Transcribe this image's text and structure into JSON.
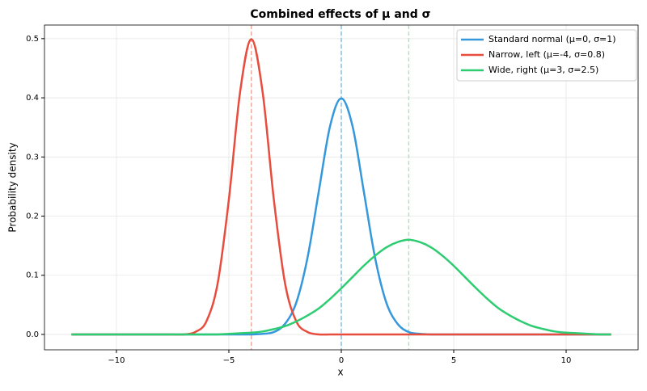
{
  "chart_data": {
    "type": "line",
    "title": "Combined effects of μ and σ",
    "xlabel": "x",
    "ylabel": "Probability density",
    "x": [
      -12,
      -11.5,
      -11,
      -10.5,
      -10,
      -9.5,
      -9,
      -8.5,
      -8,
      -7.5,
      -7,
      -6.5,
      -6,
      -5.5,
      -5,
      -4.5,
      -4,
      -3.5,
      -3,
      -2.5,
      -2,
      -1.5,
      -1,
      -0.5,
      0,
      0.5,
      1,
      1.5,
      2,
      2.5,
      3,
      3.5,
      4,
      4.5,
      5,
      5.5,
      6,
      6.5,
      7,
      7.5,
      8,
      8.5,
      9,
      9.5,
      10,
      10.5,
      11,
      11.5,
      12
    ],
    "series": [
      {
        "name": "Standard normal (μ=0, σ=1)",
        "color": "#3498db",
        "values": [
          0,
          0,
          0,
          0,
          0,
          0,
          0,
          0,
          0,
          0,
          0,
          0,
          0,
          0,
          0,
          0,
          0,
          0.001,
          0.004,
          0.018,
          0.054,
          0.13,
          0.242,
          0.352,
          0.399,
          0.352,
          0.242,
          0.13,
          0.054,
          0.018,
          0.004,
          0.001,
          0,
          0,
          0,
          0,
          0,
          0,
          0,
          0,
          0,
          0,
          0,
          0,
          0,
          0,
          0,
          0,
          0
        ]
      },
      {
        "name": "Narrow, left (μ=-4, σ=0.8)",
        "color": "#e74c3c",
        "values": [
          0,
          0,
          0,
          0,
          0,
          0,
          0,
          0,
          0,
          0,
          0,
          0.004,
          0.022,
          0.086,
          0.228,
          0.41,
          0.499,
          0.41,
          0.228,
          0.086,
          0.022,
          0.004,
          0,
          0,
          0,
          0,
          0,
          0,
          0,
          0,
          0,
          0,
          0,
          0,
          0,
          0,
          0,
          0,
          0,
          0,
          0,
          0,
          0,
          0,
          0,
          0,
          0,
          0,
          0
        ]
      },
      {
        "name": "Wide, right (μ=3, σ=2.5)",
        "color": "#2ecc71",
        "values": [
          0,
          0,
          0,
          0,
          0,
          0,
          0,
          0,
          0,
          0,
          0,
          0,
          0,
          0,
          0.001,
          0.002,
          0.003,
          0.005,
          0.009,
          0.014,
          0.022,
          0.032,
          0.044,
          0.06,
          0.078,
          0.097,
          0.116,
          0.133,
          0.147,
          0.156,
          0.16,
          0.156,
          0.147,
          0.133,
          0.116,
          0.097,
          0.078,
          0.06,
          0.044,
          0.032,
          0.022,
          0.014,
          0.009,
          0.005,
          0.003,
          0.002,
          0.001,
          0,
          0
        ]
      }
    ],
    "mean_lines": [
      {
        "value": 0,
        "color": "#85c1e9"
      },
      {
        "value": -4,
        "color": "#f1a99f"
      },
      {
        "value": 3,
        "color": "#a9e8c0"
      }
    ],
    "xlim": [
      -13.2,
      13.2
    ],
    "ylim": [
      -0.026,
      0.523
    ],
    "xticks": [
      {
        "value": -10,
        "label": "−10"
      },
      {
        "value": -5,
        "label": "−5"
      },
      0,
      5,
      10
    ],
    "yticks": [
      {
        "value": 0,
        "label": "0.0"
      },
      0.1,
      0.2,
      0.3,
      0.4,
      0.5
    ],
    "grid": true,
    "legend": "upper right"
  }
}
